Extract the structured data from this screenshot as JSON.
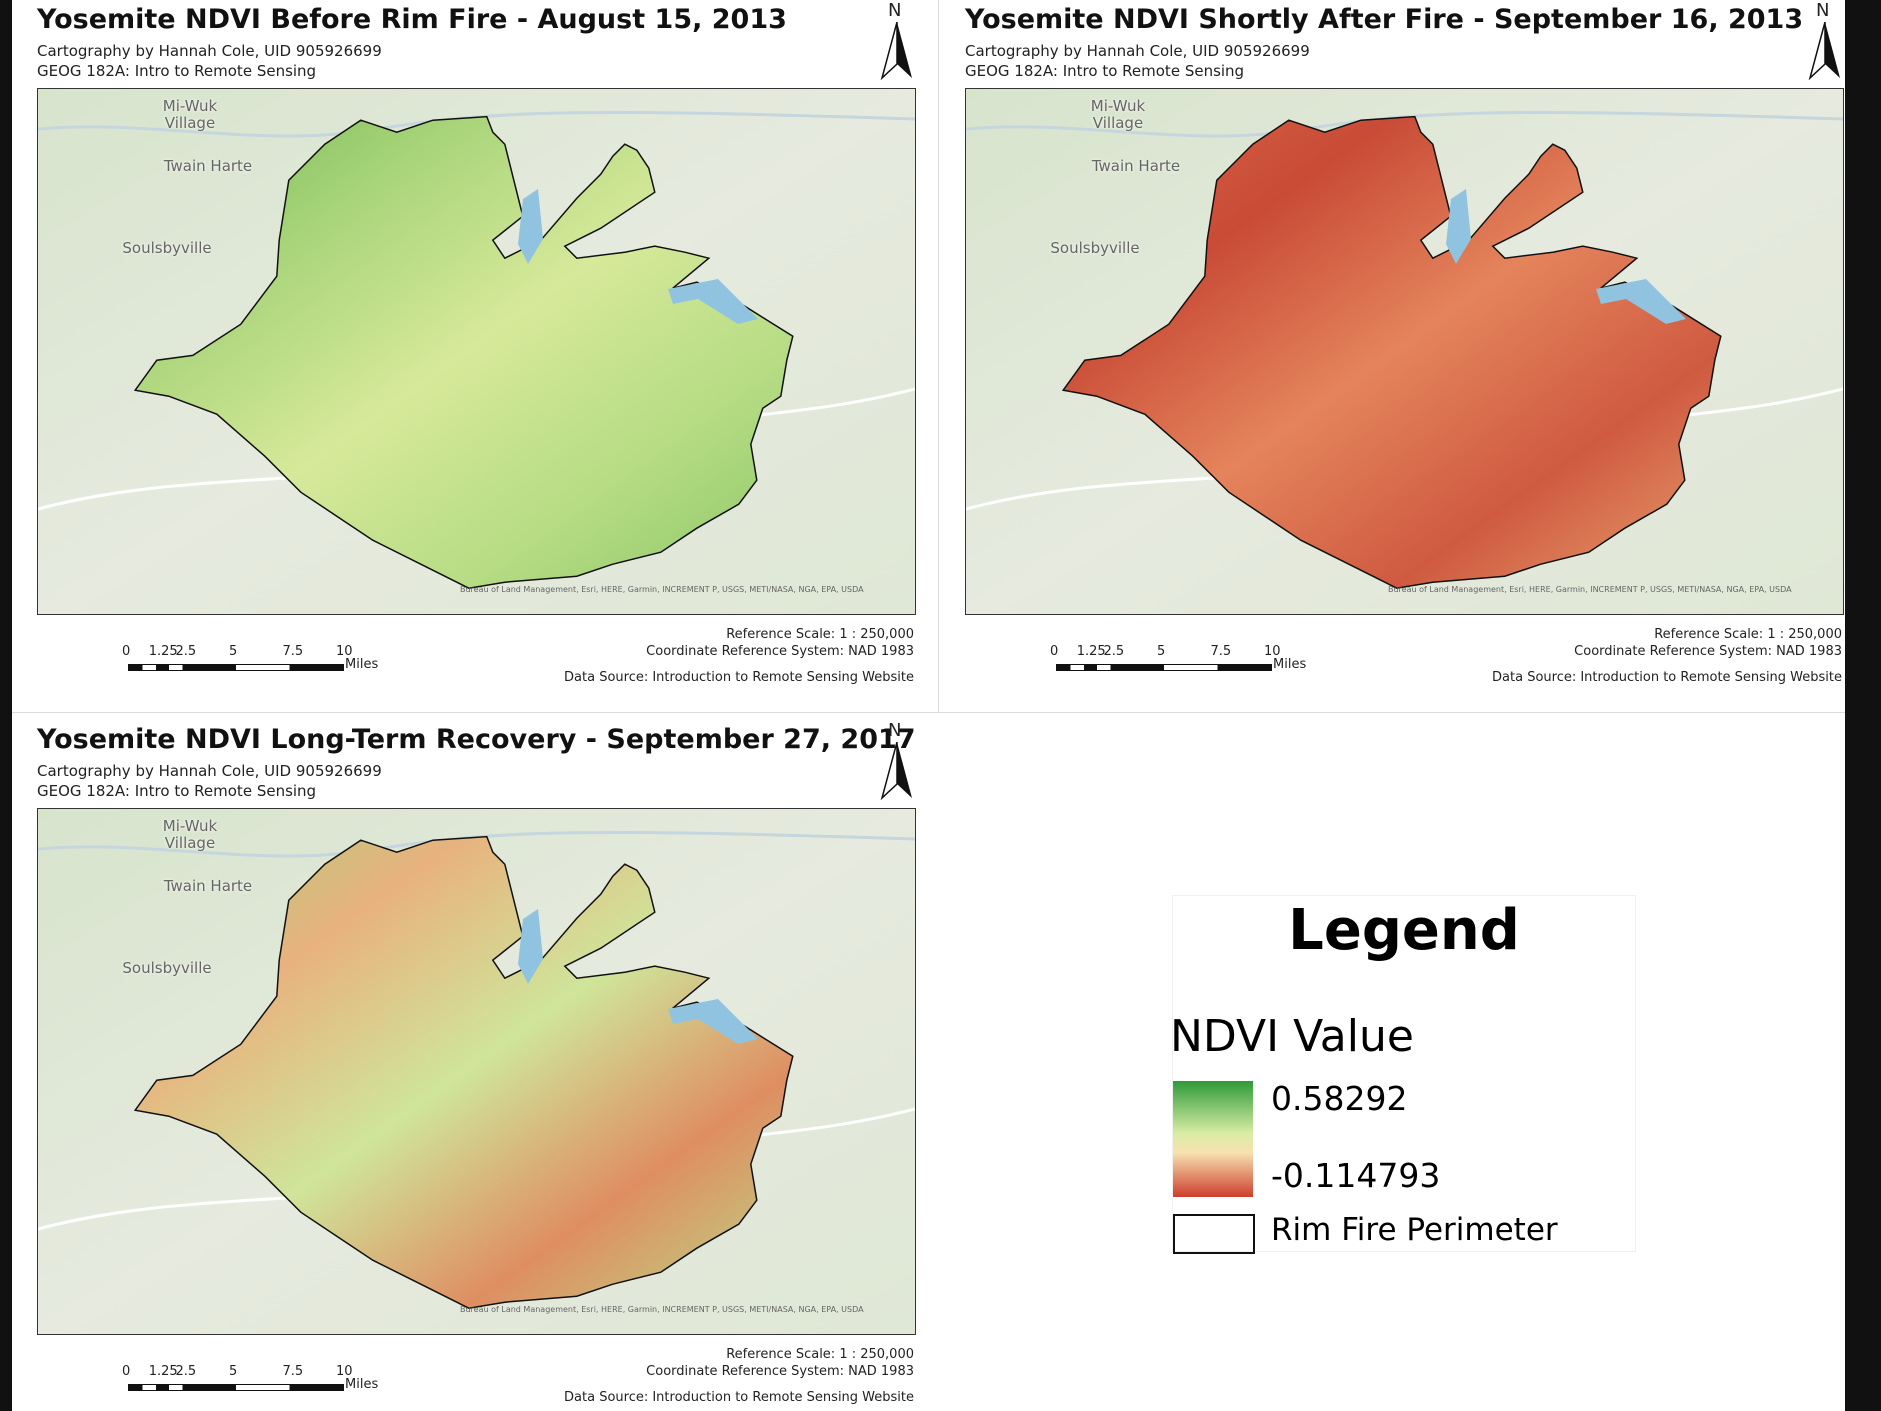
{
  "maps": [
    {
      "title": "Yosemite NDVI Before Rim Fire - August 15, 2013",
      "credit": "Cartography by Hannah Cole, UID 905926699",
      "course": "GEOG 182A: Intro to Remote Sensing",
      "north": "N",
      "places": [
        "Mi-Wuk Village",
        "Twain Harte",
        "Soulsbyville"
      ],
      "attribution": "Bureau of Land Management, Esri, HERE, Garmin, INCREMENT P, USGS, METI/NASA, NGA, EPA, USDA",
      "scale_ticks": [
        "0",
        "1.25",
        "2.5",
        "5",
        "7.5",
        "10"
      ],
      "scale_unit": "Miles",
      "reference_scale": "Reference Scale:  1 : 250,000",
      "crs": "Coordinate Reference System: NAD 1983",
      "data_source": "Data Source: Introduction to Remote Sensing Website"
    },
    {
      "title": "Yosemite NDVI Shortly After Fire - September 16, 2013",
      "credit": "Cartography by Hannah Cole, UID 905926699",
      "course": "GEOG 182A: Intro to Remote Sensing",
      "north": "N",
      "places": [
        "Mi-Wuk Village",
        "Twain Harte",
        "Soulsbyville"
      ],
      "attribution": "Bureau of Land Management, Esri, HERE, Garmin, INCREMENT P, USGS, METI/NASA, NGA, EPA, USDA",
      "scale_ticks": [
        "0",
        "1.25",
        "2.5",
        "5",
        "7.5",
        "10"
      ],
      "scale_unit": "Miles",
      "reference_scale": "Reference Scale:  1 : 250,000",
      "crs": "Coordinate Reference System: NAD 1983",
      "data_source": "Data Source: Introduction to Remote Sensing Website"
    },
    {
      "title": "Yosemite NDVI Long-Term Recovery - September 27, 2017",
      "credit": "Cartography by Hannah Cole, UID 905926699",
      "course": "GEOG 182A: Intro to Remote Sensing",
      "north": "N",
      "places": [
        "Mi-Wuk Village",
        "Twain Harte",
        "Soulsbyville"
      ],
      "attribution": "Bureau of Land Management, Esri, HERE, Garmin, INCREMENT P, USGS, METI/NASA, NGA, EPA, USDA",
      "scale_ticks": [
        "0",
        "1.25",
        "2.5",
        "5",
        "7.5",
        "10"
      ],
      "scale_unit": "Miles",
      "reference_scale": "Reference Scale:  1 : 250,000",
      "crs": "Coordinate Reference System: NAD 1983",
      "data_source": "Data Source: Introduction to Remote Sensing Website"
    }
  ],
  "legend": {
    "title": "Legend",
    "subtitle": "NDVI Value",
    "max": "0.58292",
    "min": "-0.114793",
    "perimeter": "Rim Fire Perimeter"
  }
}
